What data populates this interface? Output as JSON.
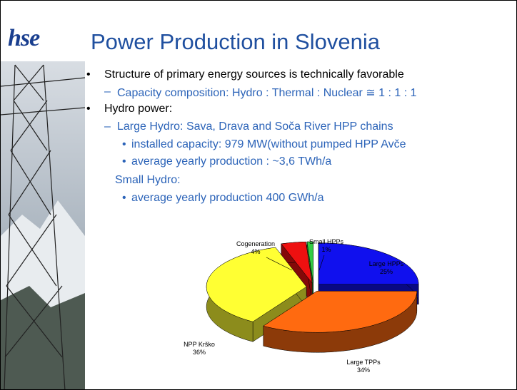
{
  "logo": "hse",
  "title": "Power Production in Slovenia",
  "bullets": [
    {
      "text": "Structure of primary energy sources is technically favorable",
      "sub": [
        {
          "text": "Capacity composition: Hydro : Thermal : Nuclear ≅ 1 : 1 : 1"
        }
      ]
    },
    {
      "text": "Hydro power:",
      "sub": [
        {
          "text": "Large Hydro: Sava, Drava and Soča River HPP chains",
          "sub": [
            "installed capacity: 979 MW(without pumped HPP Avče",
            "average yearly production : ~3,6 TWh/a"
          ]
        }
      ]
    }
  ],
  "small_hydro": {
    "heading": "Small Hydro:",
    "items": [
      "average yearly production 400 GWh/a"
    ]
  },
  "chart_data": {
    "type": "pie",
    "categories": [
      "Large HPPs",
      "Large TPPs",
      "NPP Krško",
      "Cogeneration",
      "Small HPPs"
    ],
    "values": [
      25,
      34,
      36,
      4,
      1
    ],
    "value_labels": [
      "25%",
      "34%",
      "36%",
      "4%",
      "1%"
    ],
    "colors": [
      "#1010ee",
      "#ff6a10",
      "#ffff33",
      "#ee1010",
      "#33cc44"
    ]
  }
}
